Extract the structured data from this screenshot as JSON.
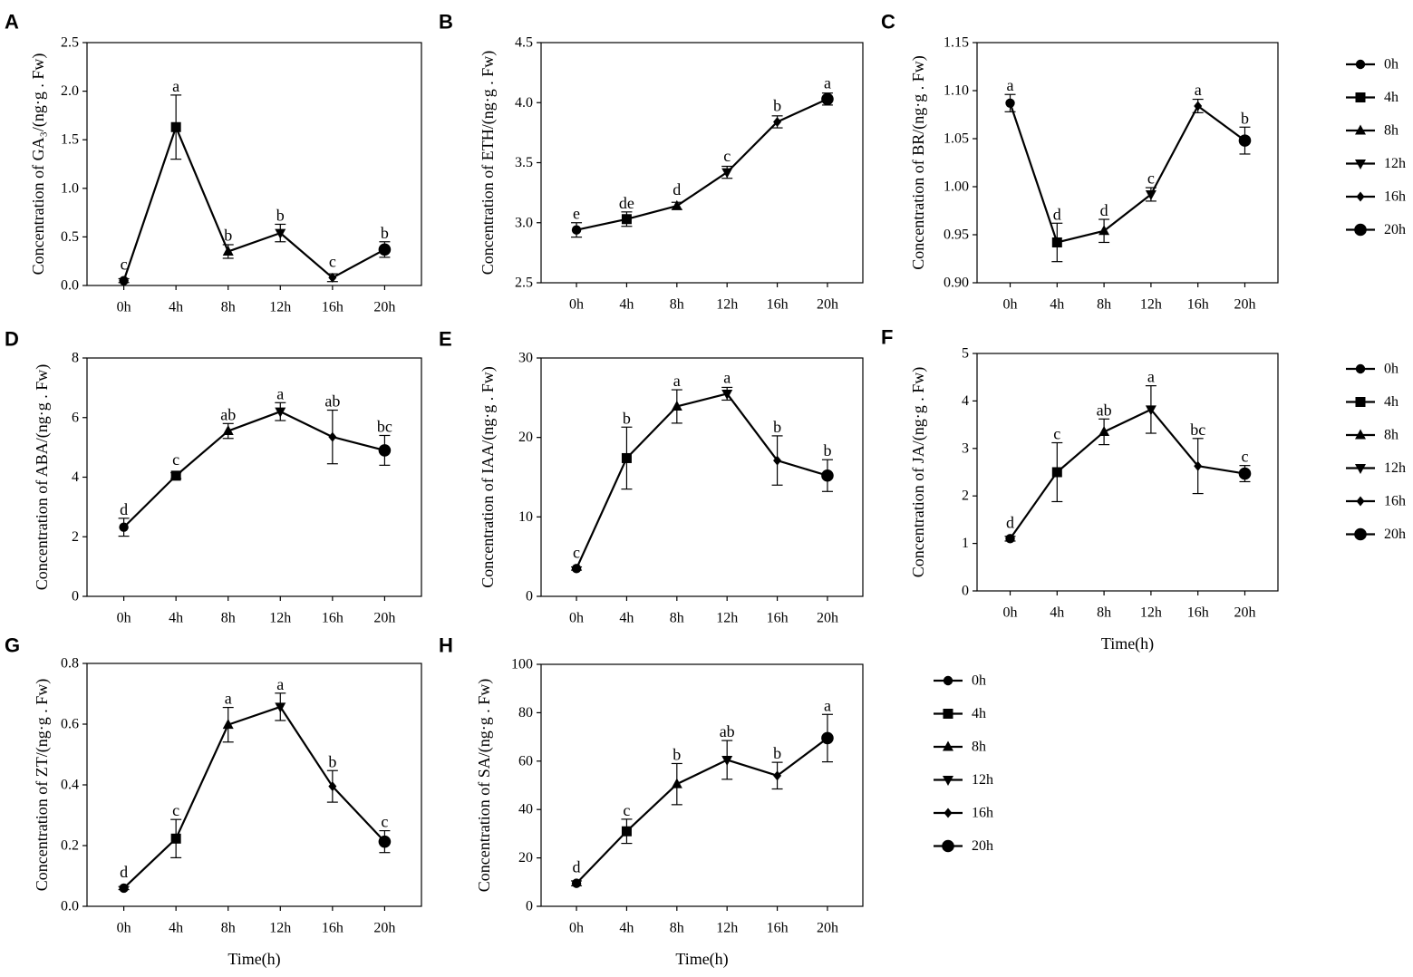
{
  "colors": {
    "ink": "#000000",
    "background": "#ffffff"
  },
  "legend_entries": [
    {
      "label": "0h",
      "marker": "circle"
    },
    {
      "label": "4h",
      "marker": "square"
    },
    {
      "label": "8h",
      "marker": "triangle-up"
    },
    {
      "label": "12h",
      "marker": "triangle-down"
    },
    {
      "label": "16h",
      "marker": "diamond"
    },
    {
      "label": "20h",
      "marker": "circle-large"
    }
  ],
  "chart_data": [
    {
      "panel": "A",
      "type": "line",
      "title": "",
      "ylabel": "Concentration of GA₃/(ng·g . Fw)",
      "xlabel": "",
      "categories": [
        "0h",
        "4h",
        "8h",
        "12h",
        "16h",
        "20h"
      ],
      "ylim": [
        0,
        2.5
      ],
      "yticks": [
        "0.0",
        "0.5",
        "1.0",
        "1.5",
        "2.0",
        "2.5"
      ],
      "ytick_values": [
        0,
        0.5,
        1.0,
        1.5,
        2.0,
        2.5
      ],
      "values": [
        0.05,
        1.63,
        0.35,
        0.54,
        0.08,
        0.37
      ],
      "errors": [
        0.02,
        0.33,
        0.07,
        0.09,
        0.04,
        0.08
      ],
      "letters": [
        "c",
        "a",
        "b",
        "b",
        "c",
        "b"
      ]
    },
    {
      "panel": "B",
      "type": "line",
      "title": "",
      "ylabel": "Concentration of ETH/(ng·g . Fw)",
      "xlabel": "",
      "categories": [
        "0h",
        "4h",
        "8h",
        "12h",
        "16h",
        "20h"
      ],
      "ylim": [
        2.5,
        4.5
      ],
      "yticks": [
        "2.5",
        "3.0",
        "3.5",
        "4.0",
        "4.5"
      ],
      "ytick_values": [
        2.5,
        3.0,
        3.5,
        4.0,
        4.5
      ],
      "values": [
        2.94,
        3.03,
        3.14,
        3.42,
        3.84,
        4.03
      ],
      "errors": [
        0.06,
        0.06,
        0.03,
        0.05,
        0.05,
        0.05
      ],
      "letters": [
        "e",
        "de",
        "d",
        "c",
        "b",
        "a"
      ]
    },
    {
      "panel": "C",
      "type": "line",
      "title": "",
      "ylabel": "Concentration of BR/(ng·g . Fw)",
      "xlabel": "",
      "categories": [
        "0h",
        "4h",
        "8h",
        "12h",
        "16h",
        "20h"
      ],
      "ylim": [
        0.9,
        1.15
      ],
      "yticks": [
        "0.90",
        "0.95",
        "1.00",
        "1.05",
        "1.10",
        "1.15"
      ],
      "ytick_values": [
        0.9,
        0.95,
        1.0,
        1.05,
        1.1,
        1.15
      ],
      "values": [
        1.087,
        0.942,
        0.954,
        0.992,
        1.084,
        1.048
      ],
      "errors": [
        0.009,
        0.02,
        0.012,
        0.007,
        0.007,
        0.014
      ],
      "letters": [
        "a",
        "d",
        "d",
        "c",
        "a",
        "b"
      ]
    },
    {
      "panel": "D",
      "type": "line",
      "title": "",
      "ylabel": "Concentration of ABA/(ng·g . Fw)",
      "xlabel": "",
      "categories": [
        "0h",
        "4h",
        "8h",
        "12h",
        "16h",
        "20h"
      ],
      "ylim": [
        0,
        8
      ],
      "yticks": [
        "0",
        "2",
        "4",
        "6",
        "8"
      ],
      "ytick_values": [
        0,
        2,
        4,
        6,
        8
      ],
      "values": [
        2.32,
        4.05,
        5.55,
        6.2,
        5.35,
        4.9
      ],
      "errors": [
        0.3,
        0.1,
        0.25,
        0.3,
        0.9,
        0.5
      ],
      "letters": [
        "d",
        "c",
        "ab",
        "a",
        "ab",
        "bc"
      ]
    },
    {
      "panel": "E",
      "type": "line",
      "title": "",
      "ylabel": "Concentration of IAA/(ng·g . Fw)",
      "xlabel": "",
      "categories": [
        "0h",
        "4h",
        "8h",
        "12h",
        "16h",
        "20h"
      ],
      "ylim": [
        0,
        30
      ],
      "yticks": [
        "0",
        "10",
        "20",
        "30"
      ],
      "ytick_values": [
        0,
        10,
        20,
        30
      ],
      "values": [
        3.5,
        17.4,
        23.9,
        25.5,
        17.1,
        15.2
      ],
      "errors": [
        0.2,
        3.9,
        2.1,
        0.8,
        3.1,
        2.0
      ],
      "letters": [
        "c",
        "b",
        "a",
        "a",
        "b",
        "b"
      ]
    },
    {
      "panel": "F",
      "type": "line",
      "title": "",
      "ylabel": "Concentration of JA/(ng·g . Fw)",
      "xlabel": "Time(h)",
      "categories": [
        "0h",
        "4h",
        "8h",
        "12h",
        "16h",
        "20h"
      ],
      "ylim": [
        0,
        5
      ],
      "yticks": [
        "0",
        "1",
        "2",
        "3",
        "4",
        "5"
      ],
      "ytick_values": [
        0,
        1,
        2,
        3,
        4,
        5
      ],
      "values": [
        1.1,
        2.5,
        3.35,
        3.82,
        2.63,
        2.47
      ],
      "errors": [
        0.05,
        0.62,
        0.27,
        0.5,
        0.58,
        0.17
      ],
      "letters": [
        "d",
        "c",
        "ab",
        "a",
        "bc",
        "c"
      ]
    },
    {
      "panel": "G",
      "type": "line",
      "title": "",
      "ylabel": "Concentration of ZT/(ng·g . Fw)",
      "xlabel": "Time(h)",
      "categories": [
        "0h",
        "4h",
        "8h",
        "12h",
        "16h",
        "20h"
      ],
      "ylim": [
        0,
        0.8
      ],
      "yticks": [
        "0.0",
        "0.2",
        "0.4",
        "0.6",
        "0.8"
      ],
      "ytick_values": [
        0,
        0.2,
        0.4,
        0.6,
        0.8
      ],
      "values": [
        0.06,
        0.223,
        0.598,
        0.657,
        0.395,
        0.213
      ],
      "errors": [
        0.005,
        0.063,
        0.057,
        0.045,
        0.052,
        0.036
      ],
      "letters": [
        "d",
        "c",
        "a",
        "a",
        "b",
        "c"
      ]
    },
    {
      "panel": "H",
      "type": "line",
      "title": "",
      "ylabel": "Concentration of SA/(ng·g . Fw)",
      "xlabel": "Time(h)",
      "categories": [
        "0h",
        "4h",
        "8h",
        "12h",
        "16h",
        "20h"
      ],
      "ylim": [
        0,
        100
      ],
      "yticks": [
        "0",
        "20",
        "40",
        "60",
        "80",
        "100"
      ],
      "ytick_values": [
        0,
        20,
        40,
        60,
        80,
        100
      ],
      "values": [
        9.5,
        31,
        50.5,
        60.5,
        54,
        69.5
      ],
      "errors": [
        1.0,
        5.0,
        8.5,
        8.0,
        5.5,
        9.8
      ],
      "letters": [
        "d",
        "c",
        "b",
        "ab",
        "b",
        "a"
      ]
    }
  ]
}
